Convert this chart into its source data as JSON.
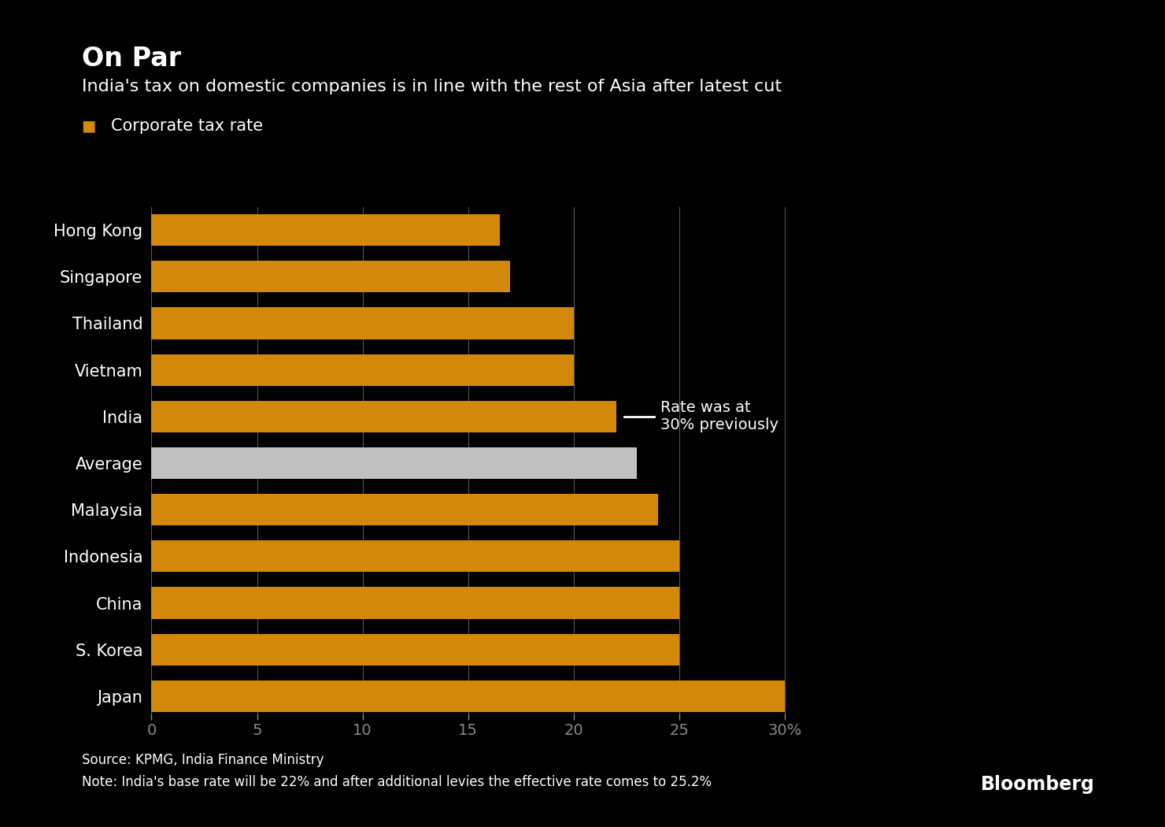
{
  "title": "On Par",
  "subtitle": "India's tax on domestic companies is in line with the rest of Asia after latest cut",
  "legend_label": "Corporate tax rate",
  "categories": [
    "Hong Kong",
    "Singapore",
    "Thailand",
    "Vietnam",
    "India",
    "Average",
    "Malaysia",
    "Indonesia",
    "China",
    "S. Korea",
    "Japan"
  ],
  "values": [
    16.5,
    17.0,
    20.0,
    20.0,
    22.0,
    23.0,
    24.0,
    25.0,
    25.0,
    25.0,
    30.0
  ],
  "bar_colors": [
    "#D4880A",
    "#D4880A",
    "#D4880A",
    "#D4880A",
    "#D4880A",
    "#C0C0C0",
    "#D4880A",
    "#D4880A",
    "#D4880A",
    "#D4880A",
    "#D4880A"
  ],
  "annotation_text": "Rate was at\n30% previously",
  "source_text": "Source: KPMG, India Finance Ministry",
  "note_text": "Note: India's base rate will be 22% and after additional levies the effective rate comes to 25.2%",
  "bloomberg_text": "Bloomberg",
  "xlim": [
    0,
    32
  ],
  "xticks": [
    0,
    5,
    10,
    15,
    20,
    25,
    30
  ],
  "xtick_labels": [
    "0",
    "5",
    "10",
    "15",
    "20",
    "25",
    "30%"
  ],
  "background_color": "#000000",
  "text_color": "#FFFFFF",
  "bar_height": 0.68,
  "title_fontsize": 24,
  "subtitle_fontsize": 16,
  "tick_fontsize": 14,
  "label_fontsize": 15,
  "annotation_fontsize": 14,
  "source_fontsize": 12,
  "legend_color": "#D4880A"
}
